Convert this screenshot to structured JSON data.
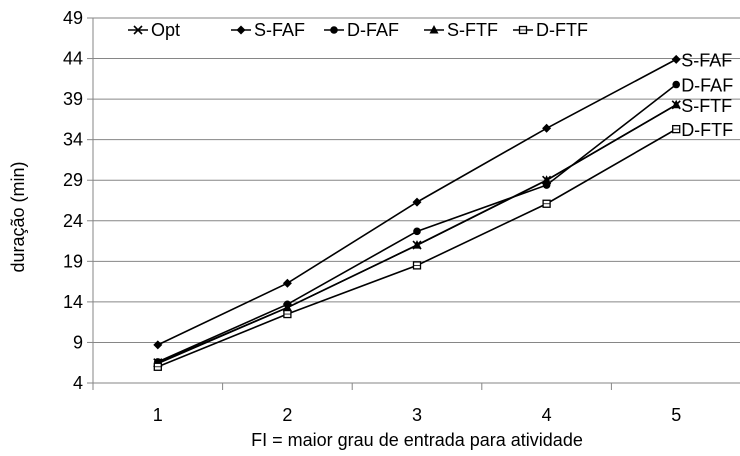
{
  "chart_data": {
    "type": "line",
    "xlabel": "FI = maior grau de entrada para atividade",
    "ylabel": "duração (min)",
    "x": [
      1,
      2,
      3,
      4,
      5
    ],
    "x_tick_labels": [
      "1",
      "2",
      "3",
      "4",
      "5"
    ],
    "ylim": [
      4,
      49
    ],
    "y_ticks": [
      4,
      9,
      14,
      19,
      24,
      29,
      34,
      39,
      44,
      49
    ],
    "y_tick_labels": [
      "4",
      "9",
      "14",
      "19",
      "24",
      "29",
      "34",
      "39",
      "44",
      "49"
    ],
    "grid": "horizontal",
    "legend_position": "top-left",
    "series": [
      {
        "name": "Opt",
        "marker": "x",
        "values": [
          6.5,
          13.3,
          21.0,
          29.0,
          38.3
        ],
        "end_label": ""
      },
      {
        "name": "S-FAF",
        "marker": "diamond",
        "values": [
          8.7,
          16.3,
          26.3,
          35.4,
          43.9
        ],
        "end_label": "S-FAF"
      },
      {
        "name": "D-FAF",
        "marker": "circle",
        "values": [
          6.6,
          13.7,
          22.7,
          28.4,
          40.8
        ],
        "end_label": "D-FAF"
      },
      {
        "name": "S-FTF",
        "marker": "triangle",
        "values": [
          6.4,
          13.3,
          21.0,
          29.0,
          38.3
        ],
        "end_label": "S-FTF"
      },
      {
        "name": "D-FTF",
        "marker": "square-open",
        "values": [
          6.0,
          12.5,
          18.5,
          26.1,
          35.3
        ],
        "end_label": "D-FTF"
      }
    ]
  }
}
